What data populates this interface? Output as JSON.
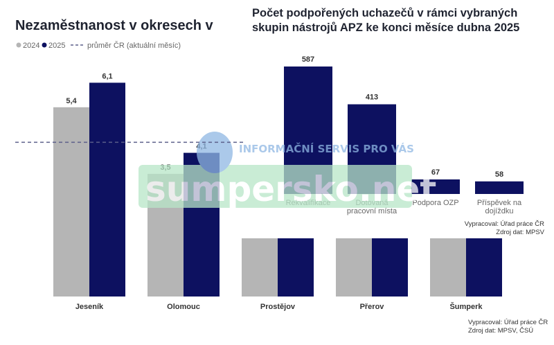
{
  "colors": {
    "y2024": "#b5b5b5",
    "y2025": "#0d1160",
    "avg_line": "#5b5f8a",
    "watermark_green": "#b8e6c8",
    "watermark_blue": "#8fb7e3"
  },
  "watermark": {
    "line1": "INFORMAČNÍ SERVIS PRO VÁS",
    "line2": "sumpersko.net"
  },
  "chart_data": [
    {
      "type": "bar",
      "title": "Nezaměstnanost v okresech v",
      "legend": {
        "placement": "top-left",
        "y2024_label": "2024",
        "y2025_label": "2025",
        "avg_label": "průměr ČR (aktuální měsíc)"
      },
      "categories": [
        "Jeseník",
        "Olomouc",
        "Prostějov",
        "Přerov",
        "Šumperk"
      ],
      "series": [
        {
          "name": "2024",
          "values": [
            5.4,
            3.5,
            null,
            null,
            null
          ],
          "labels": [
            "5,4",
            "3,5",
            "",
            "",
            ""
          ]
        },
        {
          "name": "2025",
          "values": [
            6.1,
            4.1,
            null,
            null,
            null
          ],
          "labels": [
            "6,1",
            "4,1",
            "",
            "",
            ""
          ]
        }
      ],
      "average_cr": 4.4,
      "ylim": [
        0,
        6.8
      ],
      "source": {
        "line1": "Vypracoval: Úřad práce ČR",
        "line2": "Zdroj dat: MPSV, ČSÚ"
      }
    },
    {
      "type": "bar",
      "title_line1": "Počet podpořených uchazečů v rámci vybraných",
      "title_line2": "skupin nástrojů APZ ke konci měsíce dubna 2025",
      "categories": [
        {
          "line1": "Rekvalifikace",
          "line2": ""
        },
        {
          "line1": "Dotovaná",
          "line2": "pracovní místa"
        },
        {
          "line1": "Podpora OZP",
          "line2": ""
        },
        {
          "line1": "Příspěvek na",
          "line2": "dojíždku"
        }
      ],
      "values": [
        587,
        413,
        67,
        58
      ],
      "labels": [
        "587",
        "413",
        "67",
        "58"
      ],
      "ylim": [
        0,
        600
      ],
      "source": {
        "line1": "Vypracoval: Úřad práce ČR",
        "line2": "Zdroj dat: MPSV"
      }
    }
  ]
}
